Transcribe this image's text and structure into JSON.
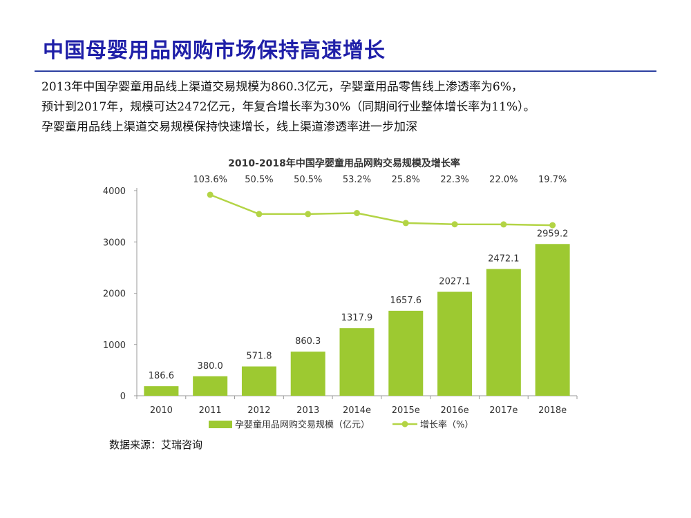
{
  "page": {
    "title": "中国母婴用品网购市场保持高速增长",
    "paragraph": [
      "2013年中国孕婴童用品线上渠道交易规模为860.3亿元，孕婴童用品零售线上渗透率为6%，",
      "预计到2017年，规模可达2472亿元，年复合增长率为30%（同期间行业整体增长率为11%）。",
      "孕婴童用品线上渠道交易规模保持快速增长，线上渠道渗透率进一步加深"
    ],
    "source": "数据来源：艾瑞咨询"
  },
  "colors": {
    "bar": "#9dc931",
    "line": "#b3d445",
    "title": "#1f1fa8",
    "axis": "#999999"
  },
  "chart_data": {
    "type": "bar",
    "title": "2010-2018年中国孕婴童用品网购交易规模及增长率",
    "categories": [
      "2010",
      "2011",
      "2012",
      "2013",
      "2014e",
      "2015e",
      "2016e",
      "2017e",
      "2018e"
    ],
    "series": [
      {
        "name": "孕婴童用品网购交易规模（亿元）",
        "kind": "bar",
        "values": [
          186.6,
          380.0,
          571.8,
          860.3,
          1317.9,
          1657.6,
          2027.1,
          2472.1,
          2959.2
        ],
        "labels": [
          "186.6",
          "380.0",
          "571.8",
          "860.3",
          "1317.9",
          "1657.6",
          "2027.1",
          "2472.1",
          "2959.2"
        ]
      },
      {
        "name": "增长率（%）",
        "kind": "line",
        "values": [
          null,
          103.6,
          50.5,
          50.5,
          53.2,
          25.8,
          22.3,
          22.0,
          19.7
        ],
        "labels": [
          "",
          "103.6%",
          "50.5%",
          "50.5%",
          "53.2%",
          "25.8%",
          "22.3%",
          "22.0%",
          "19.7%"
        ]
      }
    ],
    "yticks": [
      "0",
      "1000",
      "2000",
      "3000",
      "4000"
    ],
    "ylim": [
      0,
      4000
    ],
    "y2lim": [
      -450,
      115
    ],
    "xlabel": "",
    "ylabel": ""
  }
}
